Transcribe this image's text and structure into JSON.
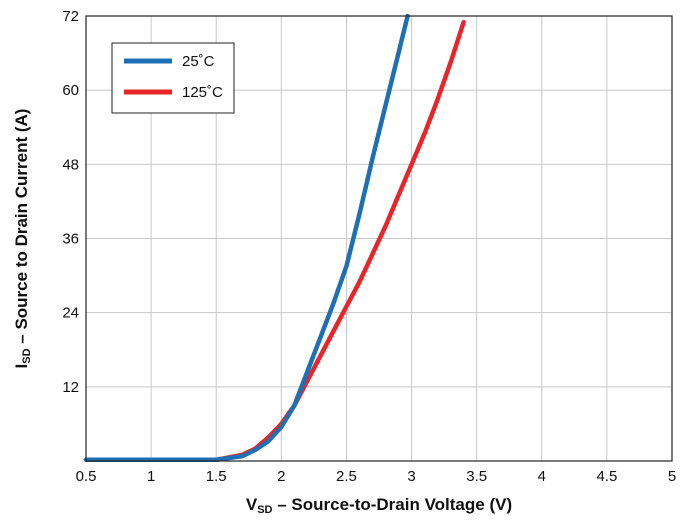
{
  "chart_data": {
    "type": "line",
    "title": "",
    "xlabel": {
      "main": "V",
      "sub": "SD",
      "rest": " – Source-to-Drain Voltage (V)"
    },
    "ylabel": {
      "main": "I",
      "sub": "SD",
      "rest": " – Source to Drain Current (A)"
    },
    "xlim": [
      0.5,
      5
    ],
    "ylim": [
      0,
      72
    ],
    "x_ticks": [
      "0.5",
      "1",
      "1.5",
      "2",
      "2.5",
      "3",
      "3.5",
      "4",
      "4.5",
      "5"
    ],
    "y_ticks": [
      "12",
      "24",
      "36",
      "48",
      "60",
      "72"
    ],
    "grid": true,
    "legend_position": "top-left",
    "series": [
      {
        "name": "25˚C",
        "color": "#1f6fb5",
        "points": [
          [
            0.5,
            0.2
          ],
          [
            1.5,
            0.2
          ],
          [
            1.7,
            0.8
          ],
          [
            1.8,
            1.8
          ],
          [
            1.9,
            3.2
          ],
          [
            2.0,
            5.5
          ],
          [
            2.1,
            9
          ],
          [
            2.2,
            14.5
          ],
          [
            2.3,
            20
          ],
          [
            2.4,
            25.5
          ],
          [
            2.5,
            31.5
          ],
          [
            2.6,
            40
          ],
          [
            2.7,
            49
          ],
          [
            2.8,
            57.5
          ],
          [
            2.9,
            66
          ],
          [
            2.97,
            72
          ]
        ]
      },
      {
        "name": "125˚C",
        "color": "#e8262a",
        "points": [
          [
            0.5,
            0.2
          ],
          [
            1.5,
            0.2
          ],
          [
            1.7,
            1.0
          ],
          [
            1.8,
            2.0
          ],
          [
            1.9,
            3.8
          ],
          [
            2.0,
            6.0
          ],
          [
            2.1,
            9
          ],
          [
            2.2,
            13
          ],
          [
            2.3,
            17
          ],
          [
            2.4,
            21
          ],
          [
            2.5,
            25
          ],
          [
            2.6,
            29
          ],
          [
            2.7,
            33.5
          ],
          [
            2.8,
            38
          ],
          [
            2.9,
            43
          ],
          [
            3.0,
            48
          ],
          [
            3.1,
            53
          ],
          [
            3.2,
            58.5
          ],
          [
            3.3,
            64.5
          ],
          [
            3.4,
            71
          ]
        ]
      }
    ]
  }
}
